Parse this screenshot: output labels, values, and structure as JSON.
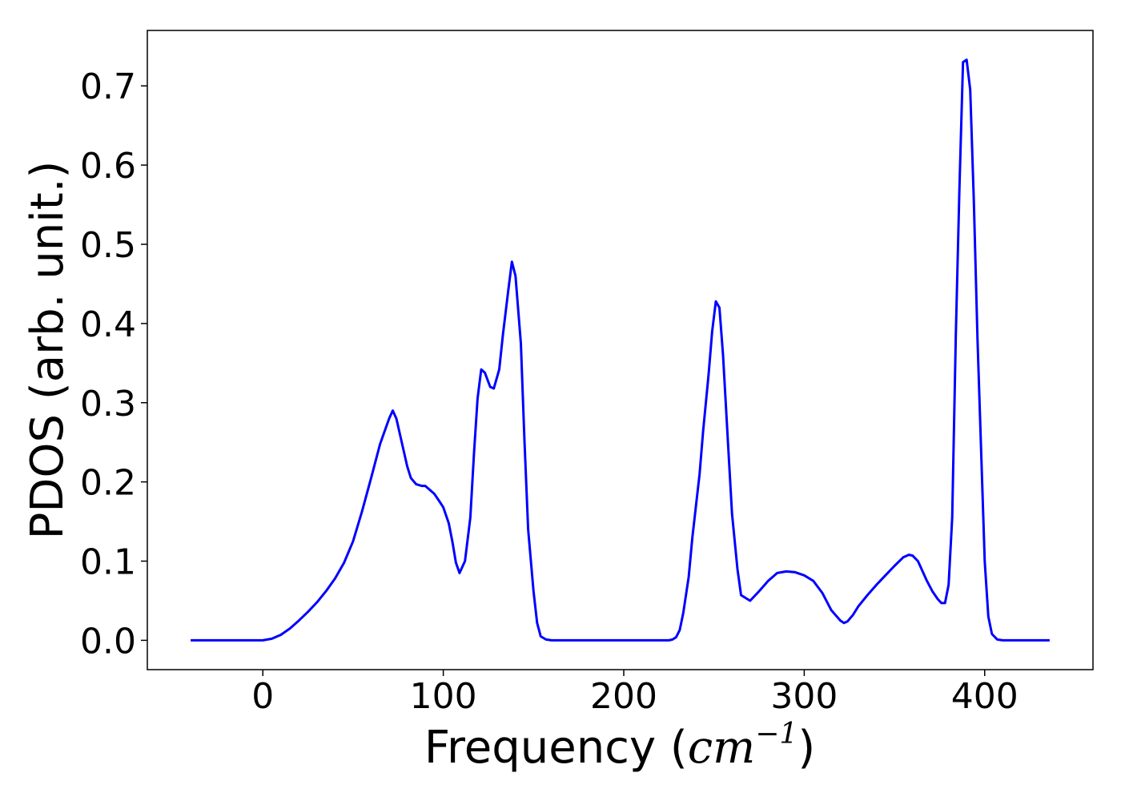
{
  "chart_data": {
    "type": "line",
    "xlabel_text": "Frequency (",
    "xlabel_math": "cm",
    "xlabel_exp": "−1",
    "xlabel_close": ")",
    "ylabel": "PDOS (arb. unit.)",
    "xlim": [
      -64,
      460
    ],
    "ylim": [
      -0.037,
      0.77
    ],
    "x_ticks": [
      0,
      100,
      200,
      300,
      400
    ],
    "x_tick_labels": [
      "0",
      "100",
      "200",
      "300",
      "400"
    ],
    "y_ticks": [
      0.0,
      0.1,
      0.2,
      0.3,
      0.4,
      0.5,
      0.6,
      0.7
    ],
    "y_tick_labels": [
      "0.0",
      "0.1",
      "0.2",
      "0.3",
      "0.4",
      "0.5",
      "0.6",
      "0.7"
    ],
    "grid": false,
    "series": [
      {
        "color": "#0000ff",
        "x": [
          -40,
          0,
          5,
          10,
          15,
          20,
          25,
          30,
          35,
          40,
          45,
          50,
          55,
          60,
          65,
          70,
          72,
          74,
          76,
          80,
          82,
          85,
          88,
          90,
          95,
          98,
          100,
          103,
          105,
          107,
          109,
          112,
          115,
          117,
          119,
          121,
          123,
          126,
          128,
          131,
          133,
          136,
          138,
          140,
          143,
          145,
          147,
          150,
          152,
          154,
          157,
          160,
          200,
          225,
          227,
          229,
          231,
          233,
          236,
          238,
          242,
          244,
          247,
          249,
          251,
          253,
          255,
          258,
          260,
          263,
          265,
          270,
          275,
          280,
          285,
          290,
          295,
          300,
          305,
          310,
          315,
          320,
          322,
          324,
          327,
          330,
          335,
          340,
          345,
          350,
          355,
          358,
          360,
          363,
          365,
          368,
          371,
          374,
          376,
          378,
          380,
          382,
          384,
          386,
          388,
          390,
          392,
          394,
          396,
          398,
          400,
          402,
          404,
          407,
          410,
          436
        ],
        "y": [
          0.0,
          0.0,
          0.002,
          0.007,
          0.015,
          0.025,
          0.036,
          0.048,
          0.062,
          0.078,
          0.098,
          0.125,
          0.163,
          0.205,
          0.248,
          0.28,
          0.29,
          0.28,
          0.26,
          0.22,
          0.205,
          0.197,
          0.195,
          0.195,
          0.185,
          0.175,
          0.168,
          0.148,
          0.125,
          0.098,
          0.085,
          0.1,
          0.155,
          0.235,
          0.305,
          0.342,
          0.338,
          0.32,
          0.318,
          0.342,
          0.385,
          0.442,
          0.478,
          0.46,
          0.375,
          0.252,
          0.14,
          0.062,
          0.022,
          0.005,
          0.001,
          0.0,
          0.0,
          0.0,
          0.001,
          0.004,
          0.013,
          0.035,
          0.08,
          0.13,
          0.21,
          0.265,
          0.335,
          0.39,
          0.428,
          0.42,
          0.36,
          0.24,
          0.16,
          0.09,
          0.057,
          0.05,
          0.062,
          0.075,
          0.085,
          0.087,
          0.086,
          0.082,
          0.075,
          0.06,
          0.038,
          0.025,
          0.022,
          0.024,
          0.032,
          0.043,
          0.057,
          0.07,
          0.082,
          0.094,
          0.105,
          0.108,
          0.107,
          0.1,
          0.09,
          0.075,
          0.062,
          0.052,
          0.047,
          0.047,
          0.07,
          0.155,
          0.385,
          0.57,
          0.73,
          0.733,
          0.695,
          0.555,
          0.38,
          0.24,
          0.1,
          0.03,
          0.008,
          0.001,
          0.0,
          0.0
        ]
      }
    ]
  },
  "colors": {
    "line": "#0000ff",
    "axes": "#000000",
    "background": "#ffffff"
  }
}
